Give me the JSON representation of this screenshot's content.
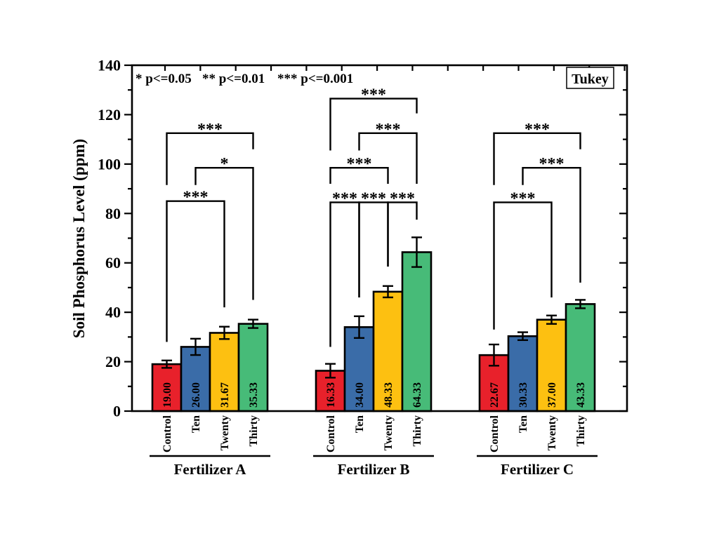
{
  "chart_data": {
    "type": "bar",
    "title": "",
    "xlabel": "",
    "ylabel": "Soil Phosphorus Level (ppm)",
    "ylim": [
      0,
      140
    ],
    "y_major_tick_step": 20,
    "y_minor_tick_step": 10,
    "grid": false,
    "legend_position": "none",
    "stats_box_label": "Tukey",
    "significance_legend_items": [
      "* p<=0.05",
      "** p<=0.01",
      "*** p<=0.001"
    ],
    "categories": [
      "Control",
      "Ten",
      "Twenty",
      "Thirty"
    ],
    "category_colors": [
      "#e8212b",
      "#3a6ca8",
      "#fdc011",
      "#47bb78"
    ],
    "bar_edge_color": "#000000",
    "axis_color": "#000000",
    "text_color": "#000000",
    "groups": [
      {
        "label": "Fertilizer A",
        "values": [
          19.0,
          26.0,
          31.67,
          35.33
        ],
        "errors": [
          1.5,
          3.3,
          2.5,
          1.7
        ]
      },
      {
        "label": "Fertilizer B",
        "values": [
          16.33,
          34.0,
          48.33,
          64.33
        ],
        "errors": [
          2.8,
          4.4,
          2.3,
          6.0
        ]
      },
      {
        "label": "Fertilizer C",
        "values": [
          22.67,
          30.33,
          37.0,
          43.33
        ],
        "errors": [
          4.3,
          1.6,
          1.7,
          1.7
        ]
      }
    ],
    "significance_brackets": [
      {
        "group": 0,
        "from": 0,
        "to": 2,
        "label": "***",
        "line_ppm": 85.0,
        "left_leg_ppm": 28.0,
        "right_leg_ppm": 42.0
      },
      {
        "group": 0,
        "from": 1,
        "to": 3,
        "label": "*",
        "line_ppm": 98.5,
        "left_leg_ppm": 91.5,
        "right_leg_ppm": 45.0
      },
      {
        "group": 0,
        "from": 0,
        "to": 3,
        "label": "***",
        "line_ppm": 112.5,
        "left_leg_ppm": 91.5,
        "right_leg_ppm": 106.0
      },
      {
        "group": 1,
        "from": 0,
        "to": 1,
        "label": "***",
        "line_ppm": 84.5,
        "left_leg_ppm": 26.0,
        "right_leg_ppm": 46.0
      },
      {
        "group": 1,
        "from": 1,
        "to": 2,
        "label": "***",
        "line_ppm": 84.5,
        "left_leg_ppm": 46.0,
        "right_leg_ppm": 58.5
      },
      {
        "group": 1,
        "from": 2,
        "to": 3,
        "label": "***",
        "line_ppm": 84.5,
        "left_leg_ppm": 58.5,
        "right_leg_ppm": 77.5
      },
      {
        "group": 1,
        "from": 0,
        "to": 2,
        "label": "***",
        "line_ppm": 98.5,
        "left_leg_ppm": 92.0,
        "right_leg_ppm": 92.0
      },
      {
        "group": 1,
        "from": 1,
        "to": 3,
        "label": "***",
        "line_ppm": 112.5,
        "left_leg_ppm": 105.5,
        "right_leg_ppm": 92.0
      },
      {
        "group": 1,
        "from": 0,
        "to": 3,
        "label": "***",
        "line_ppm": 126.5,
        "left_leg_ppm": 105.5,
        "right_leg_ppm": 120.5
      },
      {
        "group": 2,
        "from": 0,
        "to": 2,
        "label": "***",
        "line_ppm": 84.5,
        "left_leg_ppm": 33.0,
        "right_leg_ppm": 46.0
      },
      {
        "group": 2,
        "from": 1,
        "to": 3,
        "label": "***",
        "line_ppm": 98.5,
        "left_leg_ppm": 91.5,
        "right_leg_ppm": 52.0
      },
      {
        "group": 2,
        "from": 0,
        "to": 3,
        "label": "***",
        "line_ppm": 112.5,
        "left_leg_ppm": 91.5,
        "right_leg_ppm": 106.0
      }
    ]
  }
}
